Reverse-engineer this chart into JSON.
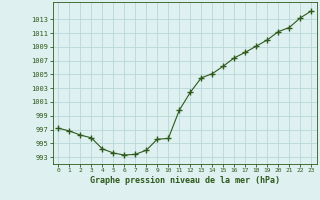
{
  "x": [
    0,
    1,
    2,
    3,
    4,
    5,
    6,
    7,
    8,
    9,
    10,
    11,
    12,
    13,
    14,
    15,
    16,
    17,
    18,
    19,
    20,
    21,
    22,
    23
  ],
  "y": [
    997.2,
    996.8,
    996.2,
    995.8,
    994.2,
    993.6,
    993.3,
    993.4,
    994.0,
    995.6,
    995.7,
    999.8,
    1002.4,
    1004.5,
    1005.1,
    1006.2,
    1007.4,
    1008.2,
    1009.1,
    1010.0,
    1011.2,
    1011.8,
    1013.2,
    1014.2
  ],
  "line_color": "#2d5a1b",
  "marker_color": "#2d5a1b",
  "bg_color": "#dff0f0",
  "grid_color": "#b8d8d8",
  "xlabel": "Graphe pression niveau de la mer (hPa)",
  "xlabel_color": "#2d5a1b",
  "tick_color": "#2d5a1b",
  "yticks": [
    993,
    995,
    997,
    999,
    1001,
    1003,
    1005,
    1007,
    1009,
    1011,
    1013
  ],
  "ylim": [
    992.0,
    1015.5
  ],
  "xlim": [
    -0.5,
    23.5
  ]
}
